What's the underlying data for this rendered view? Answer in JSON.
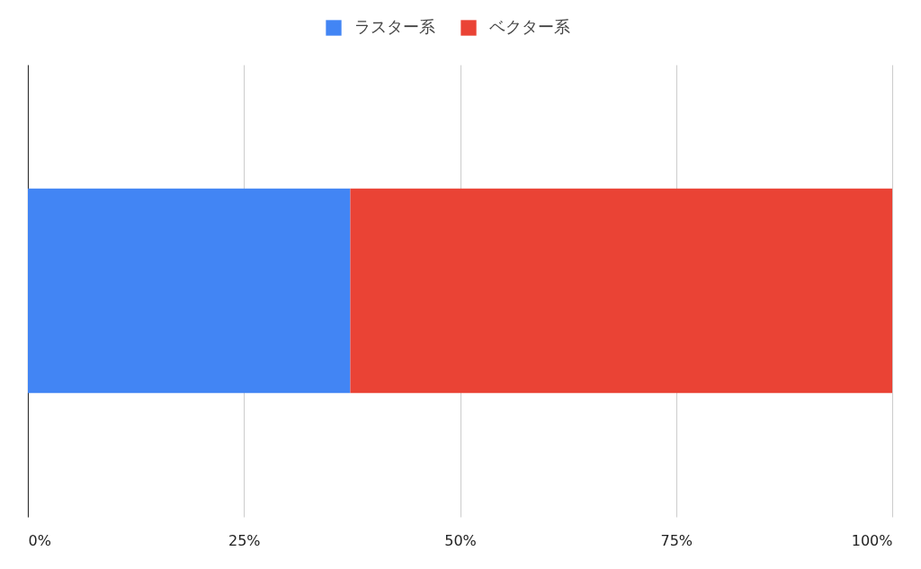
{
  "chart_data": {
    "type": "bar",
    "orientation": "horizontal",
    "stacked": true,
    "categories": [
      null
    ],
    "series": [
      {
        "name": "ラスター系",
        "color": "#4285f4",
        "values": [
          37.3
        ]
      },
      {
        "name": "ベクター系",
        "color": "#ea4335",
        "values": [
          62.7
        ]
      }
    ],
    "xlim": [
      0,
      100
    ],
    "xticks": [
      {
        "value": 0,
        "label": "0%"
      },
      {
        "value": 25,
        "label": "25%"
      },
      {
        "value": 50,
        "label": "50%"
      },
      {
        "value": 75,
        "label": "75%"
      },
      {
        "value": 100,
        "label": "100%"
      }
    ],
    "grid": "x",
    "legend": "top"
  }
}
